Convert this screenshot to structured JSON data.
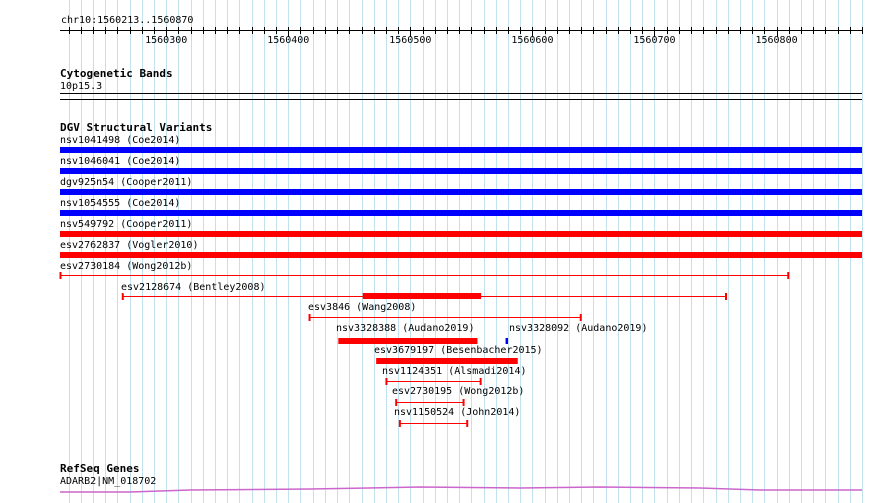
{
  "ruler": {
    "region": "chr10:1560213..1560870",
    "start": 1560213,
    "end": 1560870,
    "ticks": [
      1560300,
      1560400,
      1560500,
      1560600,
      1560700,
      1560800
    ]
  },
  "tracks": {
    "cytoband": {
      "title": "Cytogenetic Bands",
      "band_label": "10p15.3"
    },
    "dgv": {
      "title": "DGV Structural Variants"
    },
    "refseq": {
      "title": "RefSeq Genes",
      "gene_label": "ADARB2|NM_018702"
    }
  },
  "colors": {
    "grid": "#add8e6",
    "gain": "#0000ff",
    "loss": "#ff0000",
    "gene": "#cc66cc"
  },
  "variants": [
    {
      "label": "nsv1041498 (Coe2014)",
      "kind": "gain",
      "style": "bar",
      "start": 1560213,
      "end": 1560870
    },
    {
      "label": "nsv1046041 (Coe2014)",
      "kind": "gain",
      "style": "bar",
      "start": 1560213,
      "end": 1560870
    },
    {
      "label": "dgv925n54 (Cooper2011)",
      "kind": "gain",
      "style": "bar",
      "start": 1560213,
      "end": 1560870
    },
    {
      "label": "nsv1054555 (Coe2014)",
      "kind": "gain",
      "style": "bar",
      "start": 1560213,
      "end": 1560870
    },
    {
      "label": "nsv549792 (Cooper2011)",
      "kind": "loss",
      "style": "bar",
      "start": 1560213,
      "end": 1560870
    },
    {
      "label": "esv2762837 (Vogler2010)",
      "kind": "loss",
      "style": "bar",
      "start": 1560213,
      "end": 1560870
    },
    {
      "label": "esv2730184 (Wong2012b)",
      "kind": "loss",
      "style": "interval",
      "start": 1560213,
      "end": 1560810
    },
    {
      "label": "esv2128674 (Bentley2008)",
      "kind": "loss",
      "style": "interval",
      "start": 1560264,
      "end": 1560759,
      "core_start": 1560461,
      "core_end": 1560558
    },
    {
      "label": "esv3846 (Wang2008)",
      "kind": "loss",
      "style": "interval",
      "start": 1560417,
      "end": 1560640
    },
    {
      "label": "nsv3328388 (Audano2019)",
      "kind": "loss",
      "style": "bar",
      "start": 1560441,
      "end": 1560555
    },
    {
      "label": "nsv3328092 (Audano2019)",
      "kind": "gain",
      "style": "bar",
      "start": 1560578,
      "end": 1560580
    },
    {
      "label": "esv3679197 (Besenbacher2015)",
      "kind": "loss",
      "style": "bar",
      "start": 1560472,
      "end": 1560588
    },
    {
      "label": "nsv1124351 (Alsmadi2014)",
      "kind": "loss",
      "style": "interval",
      "start": 1560480,
      "end": 1560558
    },
    {
      "label": "esv2730195 (Wong2012b)",
      "kind": "loss",
      "style": "interval",
      "start": 1560488,
      "end": 1560544
    },
    {
      "label": "nsv1150524 (John2014)",
      "kind": "loss",
      "style": "interval",
      "start": 1560491,
      "end": 1560547
    }
  ]
}
